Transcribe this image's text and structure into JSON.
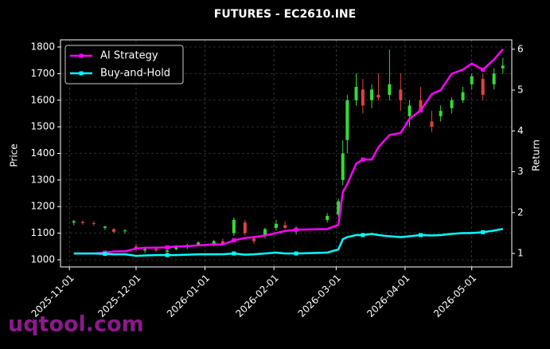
{
  "chart_data": {
    "type": "candlestick",
    "title": "FUTURES - EC2610.INE",
    "ylabel": "Price",
    "y2label": "Return",
    "annotation": "uqtool.com",
    "x": [
      "2025-11-03",
      "2025-11-07",
      "2025-11-12",
      "2025-11-17",
      "2025-11-21",
      "2025-11-26",
      "2025-12-01",
      "2025-12-05",
      "2025-12-10",
      "2025-12-15",
      "2025-12-19",
      "2025-12-24",
      "2025-12-29",
      "2026-01-05",
      "2026-01-09",
      "2026-01-14",
      "2026-01-19",
      "2026-01-23",
      "2026-01-28",
      "2026-02-02",
      "2026-02-06",
      "2026-02-11",
      "2026-02-25",
      "2026-03-02",
      "2026-03-04",
      "2026-03-06",
      "2026-03-10",
      "2026-03-13",
      "2026-03-17",
      "2026-03-20",
      "2026-03-25",
      "2026-03-30",
      "2026-04-03",
      "2026-04-08",
      "2026-04-13",
      "2026-04-17",
      "2026-04-22",
      "2026-04-27",
      "2026-05-01",
      "2026-05-06",
      "2026-05-11",
      "2026-05-15"
    ],
    "open": [
      1140,
      1142,
      1138,
      1120,
      1115,
      1108,
      1050,
      1035,
      1040,
      1030,
      1040,
      1050,
      1055,
      1060,
      1070,
      1100,
      1140,
      1080,
      1090,
      1120,
      1130,
      1110,
      1150,
      1170,
      1300,
      1450,
      1600,
      1640,
      1600,
      1620,
      1620,
      1640,
      1540,
      1600,
      1520,
      1540,
      1570,
      1600,
      1660,
      1680,
      1660,
      1720
    ],
    "high": [
      1150,
      1148,
      1145,
      1128,
      1120,
      1115,
      1060,
      1045,
      1050,
      1040,
      1055,
      1060,
      1070,
      1075,
      1080,
      1160,
      1150,
      1090,
      1120,
      1150,
      1145,
      1125,
      1175,
      1230,
      1450,
      1620,
      1700,
      1680,
      1660,
      1700,
      1790,
      1700,
      1600,
      1650,
      1560,
      1580,
      1610,
      1650,
      1700,
      1700,
      1720,
      1760
    ],
    "low": [
      1130,
      1132,
      1128,
      1112,
      1100,
      1098,
      1030,
      1025,
      1030,
      1020,
      1035,
      1040,
      1050,
      1050,
      1055,
      1090,
      1090,
      1060,
      1080,
      1110,
      1115,
      1095,
      1140,
      1160,
      1280,
      1400,
      1580,
      1550,
      1570,
      1600,
      1600,
      1560,
      1500,
      1560,
      1480,
      1520,
      1550,
      1590,
      1640,
      1600,
      1640,
      1700
    ],
    "close": [
      1145,
      1138,
      1135,
      1125,
      1105,
      1110,
      1040,
      1040,
      1035,
      1035,
      1050,
      1055,
      1065,
      1070,
      1060,
      1150,
      1100,
      1070,
      1115,
      1135,
      1120,
      1120,
      1165,
      1220,
      1400,
      1600,
      1650,
      1580,
      1640,
      1610,
      1660,
      1600,
      1580,
      1570,
      1500,
      1560,
      1600,
      1630,
      1690,
      1620,
      1700,
      1730
    ],
    "up_color": "#33dd33",
    "down_color": "#dd4444",
    "series": [
      {
        "name": "AI Strategy",
        "color": "#ff00ff",
        "axis": "y2",
        "values": [
          1.0,
          1.0,
          1.0,
          1.02,
          1.05,
          1.05,
          1.12,
          1.14,
          1.14,
          1.15,
          1.17,
          1.18,
          1.2,
          1.22,
          1.22,
          1.32,
          1.38,
          1.4,
          1.44,
          1.5,
          1.55,
          1.58,
          1.6,
          1.7,
          2.5,
          2.7,
          3.2,
          3.3,
          3.3,
          3.6,
          3.9,
          3.95,
          4.3,
          4.5,
          4.9,
          5.0,
          5.4,
          5.5,
          5.65,
          5.5,
          5.75,
          6.0
        ]
      },
      {
        "name": "Buy-and-Hold",
        "color": "#00ffff",
        "axis": "y2",
        "values": [
          1.0,
          1.0,
          1.0,
          0.99,
          0.98,
          0.98,
          0.94,
          0.95,
          0.96,
          0.96,
          0.96,
          0.97,
          0.98,
          0.98,
          0.98,
          1.0,
          0.97,
          0.98,
          1.0,
          1.02,
          1.0,
          1.0,
          1.02,
          1.1,
          1.35,
          1.4,
          1.45,
          1.45,
          1.48,
          1.45,
          1.42,
          1.4,
          1.42,
          1.45,
          1.44,
          1.45,
          1.48,
          1.5,
          1.5,
          1.52,
          1.56,
          1.6
        ]
      }
    ],
    "xlim": [
      "2025-10-28",
      "2026-05-19"
    ],
    "xticks": [
      "2025-11-01",
      "2025-12-01",
      "2026-01-01",
      "2026-02-01",
      "2026-03-01",
      "2026-04-01",
      "2026-05-01"
    ],
    "ylim": [
      973,
      1827
    ],
    "yticks": [
      1000,
      1100,
      1200,
      1300,
      1400,
      1500,
      1600,
      1700,
      1800
    ],
    "y2lim": [
      0.67,
      6.23
    ],
    "y2ticks": [
      1,
      2,
      3,
      4,
      5,
      6
    ],
    "grid": true,
    "legend": "upper left"
  }
}
